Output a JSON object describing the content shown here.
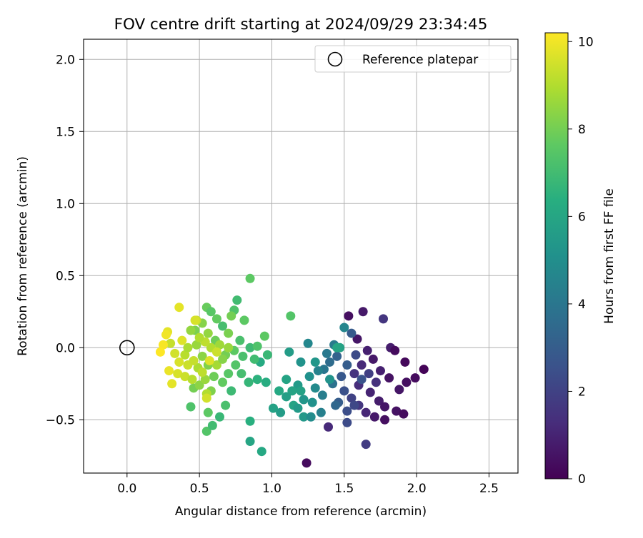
{
  "chart_data": {
    "type": "scatter",
    "title": "FOV centre drift starting at 2024/09/29 23:34:45",
    "xlabel": "Angular distance from reference (arcmin)",
    "ylabel": "Rotation from reference (arcmin)",
    "xlim": [
      -0.3,
      2.7
    ],
    "ylim": [
      -0.87,
      2.14
    ],
    "xticks": [
      0.0,
      0.5,
      1.0,
      1.5,
      2.0,
      2.5
    ],
    "xtick_labels": [
      "0.0",
      "0.5",
      "1.0",
      "1.5",
      "2.0",
      "2.5"
    ],
    "yticks": [
      -0.5,
      0.0,
      0.5,
      1.0,
      1.5,
      2.0
    ],
    "ytick_labels": [
      "−0.5",
      "0.0",
      "0.5",
      "1.0",
      "1.5",
      "2.0"
    ],
    "grid": true,
    "legend": {
      "position": "top-right",
      "entries": [
        "Reference platepar"
      ]
    },
    "reference_point": {
      "x": 0.0,
      "y": 0.0,
      "marker": "open-circle"
    },
    "colorbar": {
      "label": "Hours from first FF file",
      "range": [
        0,
        10.2
      ],
      "ticks": [
        0,
        2,
        4,
        6,
        8,
        10
      ],
      "tick_labels": [
        "0",
        "2",
        "4",
        "6",
        "8",
        "10"
      ],
      "colormap": "viridis"
    },
    "series": [
      {
        "color_by": "hours",
        "points": [
          {
            "x": 1.53,
            "y": 0.22,
            "hours": 0.4
          },
          {
            "x": 1.63,
            "y": 0.25,
            "hours": 0.7
          },
          {
            "x": 1.77,
            "y": 0.2,
            "hours": 1.6
          },
          {
            "x": 1.59,
            "y": 0.06,
            "hours": 0.6
          },
          {
            "x": 1.82,
            "y": 0.0,
            "hours": 0.8
          },
          {
            "x": 1.85,
            "y": -0.02,
            "hours": 0.3
          },
          {
            "x": 1.92,
            "y": -0.1,
            "hours": 0.2
          },
          {
            "x": 2.05,
            "y": -0.15,
            "hours": 0.1
          },
          {
            "x": 1.99,
            "y": -0.21,
            "hours": 0.3
          },
          {
            "x": 1.93,
            "y": -0.24,
            "hours": 0.4
          },
          {
            "x": 1.88,
            "y": -0.29,
            "hours": 0.6
          },
          {
            "x": 1.81,
            "y": -0.21,
            "hours": 0.5
          },
          {
            "x": 1.75,
            "y": -0.16,
            "hours": 0.9
          },
          {
            "x": 1.7,
            "y": -0.08,
            "hours": 0.7
          },
          {
            "x": 1.66,
            "y": -0.02,
            "hours": 0.9
          },
          {
            "x": 1.62,
            "y": -0.12,
            "hours": 1.2
          },
          {
            "x": 1.57,
            "y": -0.18,
            "hours": 1.5
          },
          {
            "x": 1.6,
            "y": -0.26,
            "hours": 1.3
          },
          {
            "x": 1.68,
            "y": -0.31,
            "hours": 1.0
          },
          {
            "x": 1.74,
            "y": -0.37,
            "hours": 0.8
          },
          {
            "x": 1.78,
            "y": -0.41,
            "hours": 0.6
          },
          {
            "x": 1.86,
            "y": -0.44,
            "hours": 0.5
          },
          {
            "x": 1.91,
            "y": -0.46,
            "hours": 0.3
          },
          {
            "x": 1.78,
            "y": -0.5,
            "hours": 0.4
          },
          {
            "x": 1.71,
            "y": -0.48,
            "hours": 0.7
          },
          {
            "x": 1.65,
            "y": -0.45,
            "hours": 1.1
          },
          {
            "x": 1.6,
            "y": -0.4,
            "hours": 1.6
          },
          {
            "x": 1.55,
            "y": -0.35,
            "hours": 2.0
          },
          {
            "x": 1.5,
            "y": -0.3,
            "hours": 2.5
          },
          {
            "x": 1.48,
            "y": -0.2,
            "hours": 2.8
          },
          {
            "x": 1.52,
            "y": -0.12,
            "hours": 3.0
          },
          {
            "x": 1.45,
            "y": -0.06,
            "hours": 3.2
          },
          {
            "x": 1.4,
            "y": -0.1,
            "hours": 3.6
          },
          {
            "x": 1.36,
            "y": -0.15,
            "hours": 4.0
          },
          {
            "x": 1.42,
            "y": -0.25,
            "hours": 3.8
          },
          {
            "x": 1.46,
            "y": -0.38,
            "hours": 3.0
          },
          {
            "x": 1.52,
            "y": -0.44,
            "hours": 2.4
          },
          {
            "x": 1.57,
            "y": -0.4,
            "hours": 2.2
          },
          {
            "x": 1.62,
            "y": -0.22,
            "hours": 2.6
          },
          {
            "x": 1.55,
            "y": 0.1,
            "hours": 2.9
          },
          {
            "x": 1.5,
            "y": 0.14,
            "hours": 4.6
          },
          {
            "x": 1.58,
            "y": -0.05,
            "hours": 2.3
          },
          {
            "x": 1.67,
            "y": -0.18,
            "hours": 1.9
          },
          {
            "x": 1.72,
            "y": -0.24,
            "hours": 1.4
          },
          {
            "x": 1.65,
            "y": -0.67,
            "hours": 1.8
          },
          {
            "x": 1.24,
            "y": -0.8,
            "hours": 0.3
          },
          {
            "x": 1.39,
            "y": -0.55,
            "hours": 1.2
          },
          {
            "x": 1.52,
            "y": -0.52,
            "hours": 2.3
          },
          {
            "x": 1.44,
            "y": -0.4,
            "hours": 3.4
          },
          {
            "x": 1.35,
            "y": -0.33,
            "hours": 4.3
          },
          {
            "x": 1.3,
            "y": -0.28,
            "hours": 4.8
          },
          {
            "x": 1.26,
            "y": -0.2,
            "hours": 5.1
          },
          {
            "x": 1.32,
            "y": -0.16,
            "hours": 4.5
          },
          {
            "x": 1.38,
            "y": -0.04,
            "hours": 4.1
          },
          {
            "x": 1.25,
            "y": 0.03,
            "hours": 4.7
          },
          {
            "x": 1.43,
            "y": 0.02,
            "hours": 4.2
          },
          {
            "x": 1.47,
            "y": 0.0,
            "hours": 5.8
          },
          {
            "x": 1.22,
            "y": -0.36,
            "hours": 5.3
          },
          {
            "x": 1.18,
            "y": -0.26,
            "hours": 5.5
          },
          {
            "x": 1.14,
            "y": -0.3,
            "hours": 5.9
          },
          {
            "x": 1.1,
            "y": -0.34,
            "hours": 5.7
          },
          {
            "x": 1.06,
            "y": -0.45,
            "hours": 5.6
          },
          {
            "x": 1.22,
            "y": -0.48,
            "hours": 5.4
          },
          {
            "x": 1.27,
            "y": -0.48,
            "hours": 4.9
          },
          {
            "x": 1.34,
            "y": -0.45,
            "hours": 4.4
          },
          {
            "x": 1.2,
            "y": -0.1,
            "hours": 5.2
          },
          {
            "x": 1.12,
            "y": -0.03,
            "hours": 5.6
          },
          {
            "x": 1.1,
            "y": -0.22,
            "hours": 5.9
          },
          {
            "x": 1.05,
            "y": -0.3,
            "hours": 6.1
          },
          {
            "x": 1.01,
            "y": -0.42,
            "hours": 5.8
          },
          {
            "x": 0.96,
            "y": -0.24,
            "hours": 6.3
          },
          {
            "x": 0.92,
            "y": -0.1,
            "hours": 6.2
          },
          {
            "x": 0.85,
            "y": -0.65,
            "hours": 6.0
          },
          {
            "x": 0.93,
            "y": -0.72,
            "hours": 6.1
          },
          {
            "x": 0.85,
            "y": -0.51,
            "hours": 6.4
          },
          {
            "x": 0.64,
            "y": -0.48,
            "hours": 6.8
          },
          {
            "x": 1.15,
            "y": -0.4,
            "hours": 5.9
          },
          {
            "x": 1.28,
            "y": -0.38,
            "hours": 5.1
          },
          {
            "x": 1.4,
            "y": -0.22,
            "hours": 5.2
          },
          {
            "x": 1.3,
            "y": -0.1,
            "hours": 5.3
          },
          {
            "x": 1.2,
            "y": -0.3,
            "hours": 5.8
          },
          {
            "x": 1.45,
            "y": 0.0,
            "hours": 6.0
          },
          {
            "x": 1.18,
            "y": -0.42,
            "hours": 5.5
          },
          {
            "x": 0.81,
            "y": 0.19,
            "hours": 7.6
          },
          {
            "x": 0.74,
            "y": 0.26,
            "hours": 7.3
          },
          {
            "x": 0.76,
            "y": 0.33,
            "hours": 7.0
          },
          {
            "x": 0.85,
            "y": 0.48,
            "hours": 7.6
          },
          {
            "x": 1.13,
            "y": 0.22,
            "hours": 7.4
          },
          {
            "x": 0.55,
            "y": 0.28,
            "hours": 7.8
          },
          {
            "x": 0.58,
            "y": 0.25,
            "hours": 7.5
          },
          {
            "x": 0.62,
            "y": 0.2,
            "hours": 7.7
          },
          {
            "x": 0.72,
            "y": 0.22,
            "hours": 8.0
          },
          {
            "x": 0.66,
            "y": 0.15,
            "hours": 7.1
          },
          {
            "x": 0.61,
            "y": 0.05,
            "hours": 7.9
          },
          {
            "x": 0.7,
            "y": 0.1,
            "hours": 8.1
          },
          {
            "x": 0.78,
            "y": 0.05,
            "hours": 7.2
          },
          {
            "x": 0.85,
            "y": 0.0,
            "hours": 6.9
          },
          {
            "x": 0.9,
            "y": 0.01,
            "hours": 7.3
          },
          {
            "x": 0.95,
            "y": 0.08,
            "hours": 7.6
          },
          {
            "x": 0.97,
            "y": -0.05,
            "hours": 6.8
          },
          {
            "x": 0.88,
            "y": -0.08,
            "hours": 7.0
          },
          {
            "x": 0.8,
            "y": -0.06,
            "hours": 7.2
          },
          {
            "x": 0.75,
            "y": -0.12,
            "hours": 7.4
          },
          {
            "x": 0.7,
            "y": -0.18,
            "hours": 7.5
          },
          {
            "x": 0.66,
            "y": -0.24,
            "hours": 7.7
          },
          {
            "x": 0.6,
            "y": -0.2,
            "hours": 7.9
          },
          {
            "x": 0.56,
            "y": -0.12,
            "hours": 8.2
          },
          {
            "x": 0.52,
            "y": -0.06,
            "hours": 8.4
          },
          {
            "x": 0.48,
            "y": 0.02,
            "hours": 8.6
          },
          {
            "x": 0.47,
            "y": 0.12,
            "hours": 8.1
          },
          {
            "x": 0.52,
            "y": 0.17,
            "hours": 8.3
          },
          {
            "x": 0.56,
            "y": 0.1,
            "hours": 8.5
          },
          {
            "x": 0.64,
            "y": 0.02,
            "hours": 8.7
          },
          {
            "x": 0.68,
            "y": -0.05,
            "hours": 8.0
          },
          {
            "x": 0.74,
            "y": -0.02,
            "hours": 7.6
          },
          {
            "x": 0.79,
            "y": -0.18,
            "hours": 7.1
          },
          {
            "x": 0.84,
            "y": -0.24,
            "hours": 6.7
          },
          {
            "x": 0.9,
            "y": -0.22,
            "hours": 6.5
          },
          {
            "x": 0.72,
            "y": -0.3,
            "hours": 6.9
          },
          {
            "x": 0.68,
            "y": -0.4,
            "hours": 7.2
          },
          {
            "x": 0.56,
            "y": -0.45,
            "hours": 7.6
          },
          {
            "x": 0.55,
            "y": -0.58,
            "hours": 7.4
          },
          {
            "x": 0.59,
            "y": -0.54,
            "hours": 7.0
          },
          {
            "x": 0.44,
            "y": -0.41,
            "hours": 7.3
          },
          {
            "x": 0.46,
            "y": -0.28,
            "hours": 8.0
          },
          {
            "x": 0.5,
            "y": -0.26,
            "hours": 8.4
          },
          {
            "x": 0.54,
            "y": -0.22,
            "hours": 8.6
          },
          {
            "x": 0.58,
            "y": -0.3,
            "hours": 8.2
          },
          {
            "x": 0.62,
            "y": -0.12,
            "hours": 8.8
          },
          {
            "x": 0.66,
            "y": -0.08,
            "hours": 8.3
          },
          {
            "x": 0.7,
            "y": 0.0,
            "hours": 8.6
          },
          {
            "x": 0.58,
            "y": 0.0,
            "hours": 9.0
          },
          {
            "x": 0.54,
            "y": 0.04,
            "hours": 9.2
          },
          {
            "x": 0.5,
            "y": 0.07,
            "hours": 9.0
          },
          {
            "x": 0.48,
            "y": 0.19,
            "hours": 9.3
          },
          {
            "x": 0.44,
            "y": 0.12,
            "hours": 8.5
          },
          {
            "x": 0.4,
            "y": -0.05,
            "hours": 9.1
          },
          {
            "x": 0.42,
            "y": -0.12,
            "hours": 9.4
          },
          {
            "x": 0.36,
            "y": -0.1,
            "hours": 9.6
          },
          {
            "x": 0.33,
            "y": -0.04,
            "hours": 9.5
          },
          {
            "x": 0.3,
            "y": 0.03,
            "hours": 9.3
          },
          {
            "x": 0.28,
            "y": 0.11,
            "hours": 9.8
          },
          {
            "x": 0.27,
            "y": 0.09,
            "hours": 10.0
          },
          {
            "x": 0.25,
            "y": 0.02,
            "hours": 10.1
          },
          {
            "x": 0.23,
            "y": -0.03,
            "hours": 10.2
          },
          {
            "x": 0.29,
            "y": -0.16,
            "hours": 9.9
          },
          {
            "x": 0.31,
            "y": -0.25,
            "hours": 9.8
          },
          {
            "x": 0.35,
            "y": -0.18,
            "hours": 9.6
          },
          {
            "x": 0.4,
            "y": -0.2,
            "hours": 9.4
          },
          {
            "x": 0.45,
            "y": -0.22,
            "hours": 9.1
          },
          {
            "x": 0.49,
            "y": -0.14,
            "hours": 8.9
          },
          {
            "x": 0.52,
            "y": -0.17,
            "hours": 9.2
          },
          {
            "x": 0.55,
            "y": -0.32,
            "hours": 9.0
          },
          {
            "x": 0.55,
            "y": -0.35,
            "hours": 9.5
          },
          {
            "x": 0.36,
            "y": 0.28,
            "hours": 9.8
          },
          {
            "x": 0.47,
            "y": 0.19,
            "hours": 9.6
          },
          {
            "x": 0.38,
            "y": 0.05,
            "hours": 9.7
          },
          {
            "x": 0.62,
            "y": -0.03,
            "hours": 9.4
          },
          {
            "x": 0.57,
            "y": -0.09,
            "hours": 9.7
          },
          {
            "x": 0.46,
            "y": -0.09,
            "hours": 9.3
          },
          {
            "x": 0.42,
            "y": 0.0,
            "hours": 8.9
          }
        ]
      }
    ]
  }
}
